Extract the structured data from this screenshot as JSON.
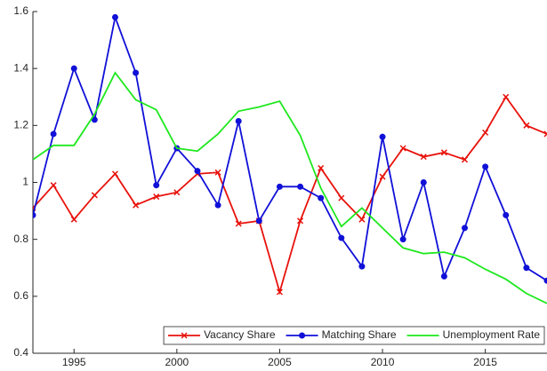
{
  "chart_data": {
    "type": "line",
    "x": [
      1993,
      1994,
      1995,
      1996,
      1997,
      1998,
      1999,
      2000,
      2001,
      2002,
      2003,
      2004,
      2005,
      2006,
      2007,
      2008,
      2009,
      2010,
      2011,
      2012,
      2013,
      2014,
      2015,
      2016,
      2017,
      2018
    ],
    "series": [
      {
        "name": "Vacancy Share",
        "color": "#e8120c",
        "marker": "x",
        "values": [
          0.91,
          0.99,
          0.87,
          0.955,
          1.03,
          0.92,
          0.95,
          0.965,
          1.03,
          1.035,
          0.855,
          0.865,
          0.615,
          0.865,
          1.05,
          0.945,
          0.87,
          1.02,
          1.12,
          1.09,
          1.105,
          1.08,
          1.175,
          1.3,
          1.2,
          1.17
        ]
      },
      {
        "name": "Matching Share",
        "color": "#1010d8",
        "marker": "o",
        "values": [
          0.885,
          1.17,
          1.4,
          1.22,
          1.58,
          1.385,
          0.99,
          1.12,
          1.04,
          0.92,
          1.215,
          0.865,
          0.985,
          0.985,
          0.945,
          0.805,
          0.705,
          1.16,
          0.8,
          1.0,
          0.67,
          0.84,
          1.055,
          0.885,
          0.7,
          0.655
        ]
      },
      {
        "name": "Unemployment Rate",
        "color": "#1ee81e",
        "marker": "none",
        "values": [
          1.08,
          1.13,
          1.13,
          1.24,
          1.385,
          1.29,
          1.255,
          1.12,
          1.11,
          1.17,
          1.25,
          1.265,
          1.285,
          1.165,
          0.98,
          0.845,
          0.91,
          0.84,
          0.77,
          0.75,
          0.755,
          0.735,
          0.695,
          0.66,
          0.61,
          0.575
        ]
      }
    ],
    "xlim": [
      1993,
      2018
    ],
    "ylim": [
      0.4,
      1.6
    ],
    "xticks": [
      1995,
      2000,
      2005,
      2010,
      2015
    ],
    "yticks": [
      0.4,
      0.6,
      0.8,
      1,
      1.2,
      1.4,
      1.6
    ],
    "grid": false,
    "legend": "lower right"
  }
}
